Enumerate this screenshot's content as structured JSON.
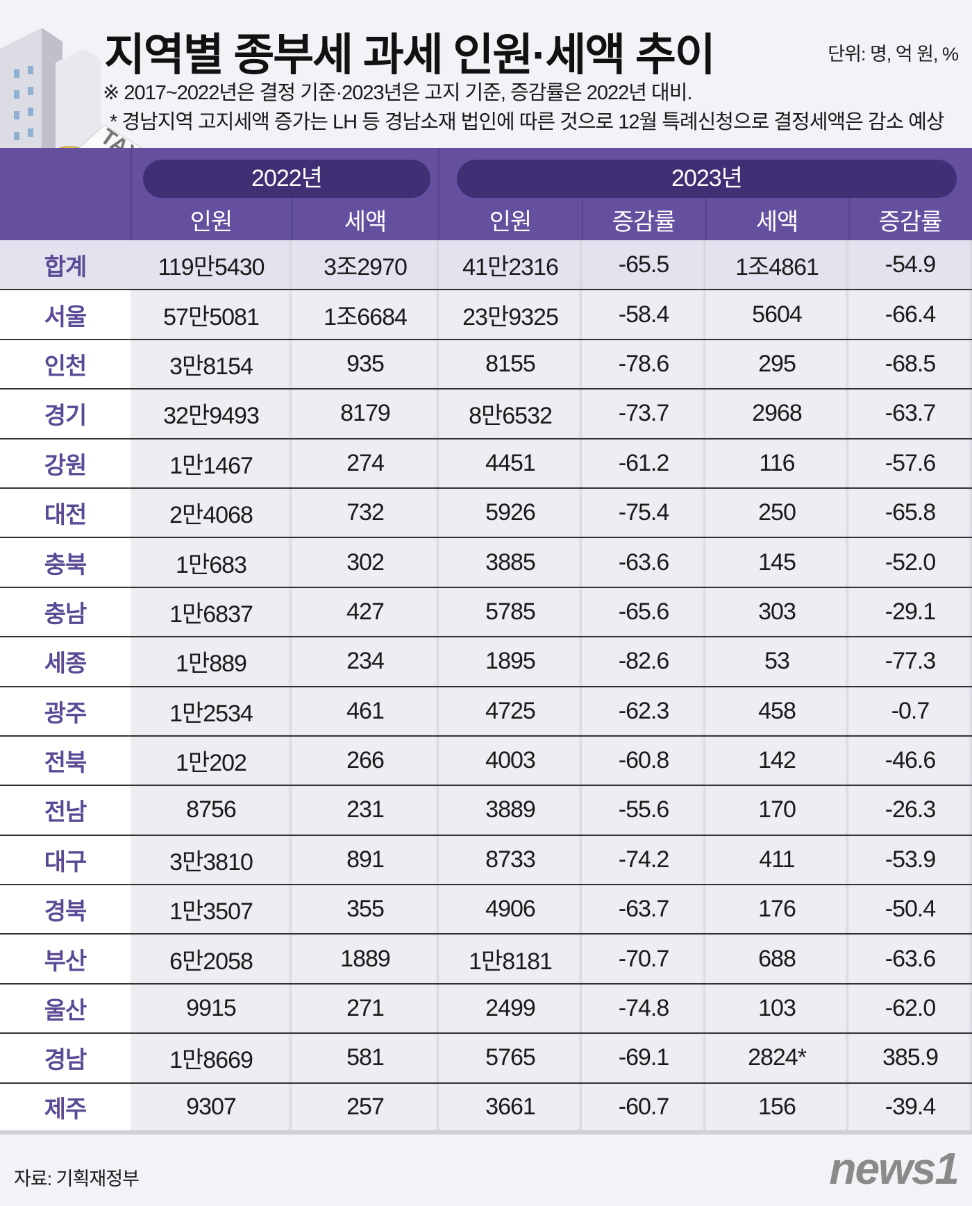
{
  "title": "지역별 종부세 과세 인원·세액 추이",
  "unit": "단위: 명, 억 원, %",
  "notes": [
    "※ 2017~2022년은 결정 기준·2023년은 고지 기준, 증감률은 2022년 대비.",
    "* 경남지역 고지세액 증가는 LH 등 경남소재 법인에 따른 것으로 12월 특례신청으로 결정세액은 감소 예상"
  ],
  "illustration_text": "TAX",
  "source": "자료: 기획재정부",
  "logo": "news1",
  "chart_data": {
    "type": "table",
    "groups": [
      "2022년",
      "2023년"
    ],
    "columns": [
      "인원",
      "세액",
      "인원",
      "증감률",
      "세액",
      "증감률"
    ],
    "rows": [
      {
        "region": "합계",
        "values": [
          "119만5430",
          "3조2970",
          "41만2316",
          "-65.5",
          "1조4861",
          "-54.9"
        ]
      },
      {
        "region": "서울",
        "values": [
          "57만5081",
          "1조6684",
          "23만9325",
          "-58.4",
          "5604",
          "-66.4"
        ]
      },
      {
        "region": "인천",
        "values": [
          "3만8154",
          "935",
          "8155",
          "-78.6",
          "295",
          "-68.5"
        ]
      },
      {
        "region": "경기",
        "values": [
          "32만9493",
          "8179",
          "8만6532",
          "-73.7",
          "2968",
          "-63.7"
        ]
      },
      {
        "region": "강원",
        "values": [
          "1만1467",
          "274",
          "4451",
          "-61.2",
          "116",
          "-57.6"
        ]
      },
      {
        "region": "대전",
        "values": [
          "2만4068",
          "732",
          "5926",
          "-75.4",
          "250",
          "-65.8"
        ]
      },
      {
        "region": "충북",
        "values": [
          "1만683",
          "302",
          "3885",
          "-63.6",
          "145",
          "-52.0"
        ]
      },
      {
        "region": "충남",
        "values": [
          "1만6837",
          "427",
          "5785",
          "-65.6",
          "303",
          "-29.1"
        ]
      },
      {
        "region": "세종",
        "values": [
          "1만889",
          "234",
          "1895",
          "-82.6",
          "53",
          "-77.3"
        ]
      },
      {
        "region": "광주",
        "values": [
          "1만2534",
          "461",
          "4725",
          "-62.3",
          "458",
          "-0.7"
        ]
      },
      {
        "region": "전북",
        "values": [
          "1만202",
          "266",
          "4003",
          "-60.8",
          "142",
          "-46.6"
        ]
      },
      {
        "region": "전남",
        "values": [
          "8756",
          "231",
          "3889",
          "-55.6",
          "170",
          "-26.3"
        ]
      },
      {
        "region": "대구",
        "values": [
          "3만3810",
          "891",
          "8733",
          "-74.2",
          "411",
          "-53.9"
        ]
      },
      {
        "region": "경북",
        "values": [
          "1만3507",
          "355",
          "4906",
          "-63.7",
          "176",
          "-50.4"
        ]
      },
      {
        "region": "부산",
        "values": [
          "6만2058",
          "1889",
          "1만8181",
          "-70.7",
          "688",
          "-63.6"
        ]
      },
      {
        "region": "울산",
        "values": [
          "9915",
          "271",
          "2499",
          "-74.8",
          "103",
          "-62.0"
        ]
      },
      {
        "region": "경남",
        "values": [
          "1만8669",
          "581",
          "5765",
          "-69.1",
          "2824*",
          "385.9"
        ]
      },
      {
        "region": "제주",
        "values": [
          "9307",
          "257",
          "3661",
          "-60.7",
          "156",
          "-39.4"
        ]
      }
    ]
  },
  "colors": {
    "header": "#6550a0",
    "pill": "#3f3075",
    "label": "#5a4a96"
  }
}
